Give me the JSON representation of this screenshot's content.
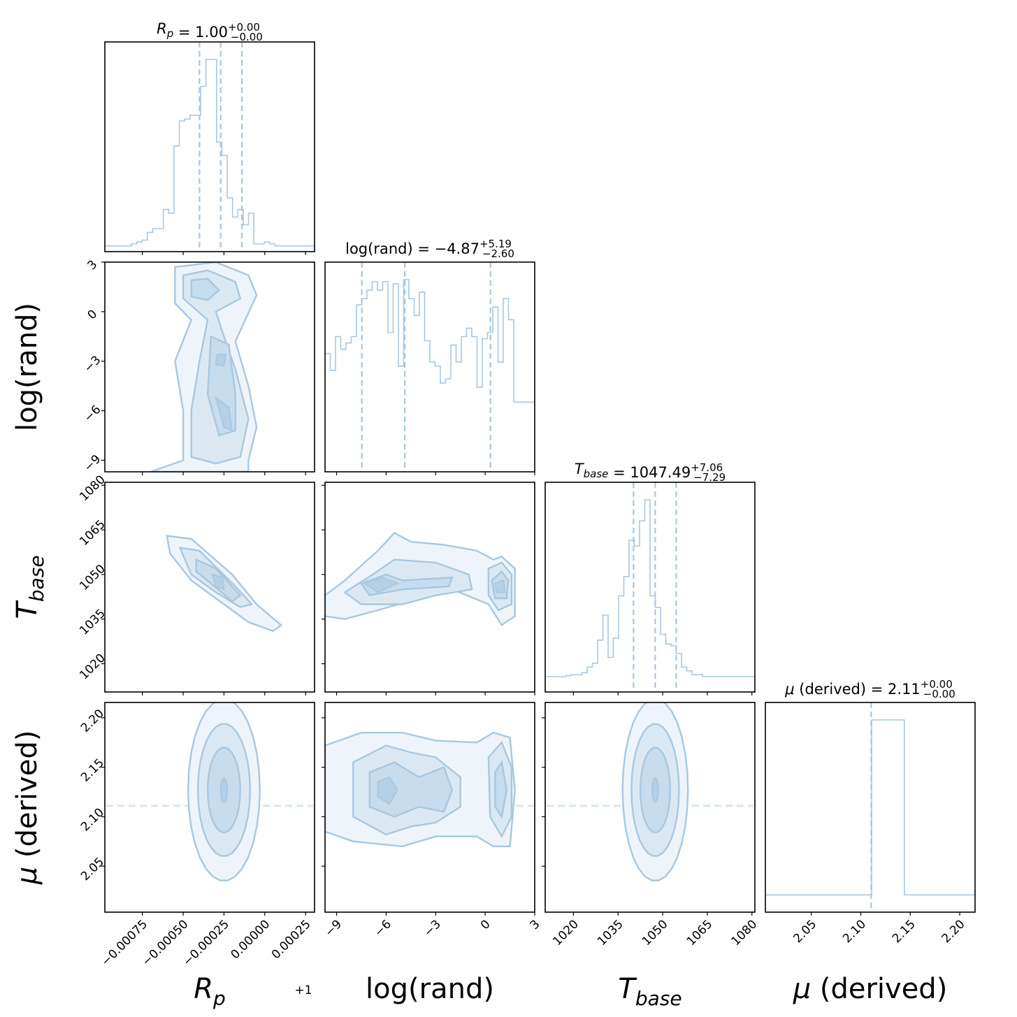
{
  "chart_data": {
    "type": "corner",
    "parameters": [
      {
        "key": "rp",
        "label": "R_p",
        "axis_title": "R",
        "axis_sub": "p",
        "offset_label": "+1",
        "range": [
          -0.00098,
          0.000305
        ],
        "ticks": [
          -0.00075,
          -0.0005,
          -0.00025,
          0.0,
          0.00025
        ],
        "tick_labels": [
          "−0.00075",
          "−0.00050",
          "−0.00025",
          "0.00000",
          "0.00025"
        ],
        "quantiles": [
          -0.0004,
          -0.00027,
          -0.00014
        ],
        "title": {
          "lead": "",
          "it": "R",
          "sub": "p",
          "mid": " = 1.00",
          "sup": "+0.00",
          "inf": "−0.00"
        }
      },
      {
        "key": "logrand",
        "label": "log(rand)",
        "axis_title": "log(rand)",
        "axis_sub": "",
        "range": [
          -9.7,
          3.0
        ],
        "ticks": [
          -9,
          -6,
          -3,
          0,
          3
        ],
        "tick_labels": [
          "−9",
          "−6",
          "−3",
          "0",
          "3"
        ],
        "quantiles": [
          -7.47,
          -4.87,
          0.32
        ],
        "title": {
          "lead": "log(rand) = −4.87",
          "it": "",
          "sub": "",
          "mid": "",
          "sup": "+5.19",
          "inf": "−2.60"
        }
      },
      {
        "key": "tbase",
        "label": "T_base",
        "axis_title": "T",
        "axis_sub": "base",
        "range": [
          1010.5,
          1081.0
        ],
        "ticks": [
          1020,
          1035,
          1050,
          1065,
          1080
        ],
        "tick_labels": [
          "1020",
          "1035",
          "1050",
          "1065",
          "1080"
        ],
        "quantiles": [
          1040.2,
          1047.49,
          1054.55
        ],
        "title": {
          "lead": "",
          "it": "T",
          "sub": "base",
          "mid": " = 1047.49",
          "sup": "+7.06",
          "inf": "−7.29"
        }
      },
      {
        "key": "mu",
        "label": "μ (derived)",
        "axis_title": "μ",
        "axis_sub": "",
        "axis_rest": " (derived)",
        "range": [
          2.0035,
          2.2155
        ],
        "ticks": [
          2.05,
          2.1,
          2.15,
          2.2
        ],
        "tick_labels": [
          "2.05",
          "2.10",
          "2.15",
          "2.20"
        ],
        "quantiles": [
          2.1097,
          2.1105,
          2.1112
        ],
        "title": {
          "lead": "",
          "it": "μ",
          "sub": "",
          "mid": " (derived) = 2.11",
          "sup": "+0.00",
          "inf": "−0.00"
        }
      }
    ],
    "histograms": {
      "rp": {
        "edges_start": -0.00098,
        "bin_width": 3.26e-05,
        "counts": [
          0.03,
          0.03,
          0.03,
          0.03,
          0.03,
          0.04,
          0.05,
          0.06,
          0.1,
          0.12,
          0.12,
          0.22,
          0.2,
          0.55,
          0.68,
          0.69,
          0.71,
          0.71,
          0.86,
          1.0,
          1.0,
          0.57,
          0.5,
          0.28,
          0.18,
          0.22,
          0.14,
          0.2,
          0.04,
          0.04,
          0.05,
          0.04,
          0.03,
          0.03,
          0.03,
          0.03,
          0.03,
          0.03,
          0.03,
          0.03
        ]
      },
      "logrand": {
        "edges_start": -9.7,
        "bin_width": 0.3175,
        "counts": [
          0.56,
          0.48,
          0.64,
          0.58,
          0.61,
          0.64,
          0.79,
          0.82,
          0.86,
          0.9,
          0.86,
          0.9,
          0.66,
          0.89,
          0.5,
          0.91,
          0.82,
          0.74,
          0.85,
          0.62,
          0.52,
          0.5,
          0.42,
          0.44,
          0.6,
          0.52,
          0.64,
          0.68,
          0.64,
          0.4,
          0.63,
          0.66,
          0.78,
          0.52,
          0.82,
          0.72,
          0.33,
          0.33,
          0.33,
          0.33
        ]
      },
      "tbase": {
        "edges_start": 1010.5,
        "bin_width": 1.7625,
        "counts": [
          0.08,
          0.08,
          0.08,
          0.08,
          0.085,
          0.09,
          0.09,
          0.1,
          0.13,
          0.15,
          0.27,
          0.4,
          0.18,
          0.28,
          0.5,
          0.6,
          0.79,
          0.76,
          0.89,
          1.0,
          0.5,
          0.44,
          0.3,
          0.25,
          0.24,
          0.2,
          0.13,
          0.11,
          0.09,
          0.09,
          0.08,
          0.08,
          0.08,
          0.08,
          0.08,
          0.08,
          0.08,
          0.08,
          0.08,
          0.08
        ]
      },
      "mu": {
        "bins": [
          [
            2.0035,
            2.111,
            0.09
          ],
          [
            2.111,
            2.144,
            1.0
          ],
          [
            2.144,
            2.2155,
            0.09
          ]
        ]
      }
    },
    "contours_2d": {
      "rp_vs_logrand": {
        "approx": "bimodal along log(rand)",
        "peaks_logrand": [
          1.0,
          -3.0,
          -6.0
        ],
        "rp_center": -0.00025
      },
      "rp_vs_tbase": {
        "approx": "negative correlation",
        "center": [
          -0.00025,
          1048
        ]
      },
      "logrand_vs_tbase": {
        "approx": "two clusters",
        "centers": [
          [
            -6.0,
            1047
          ],
          [
            1.0,
            1046
          ]
        ]
      },
      "rp_vs_mu": {
        "center": [
          -0.00025,
          2.127
        ]
      },
      "logrand_vs_mu": {
        "centers": [
          [
            -6.0,
            2.127
          ],
          [
            1.0,
            2.127
          ]
        ]
      },
      "tbase_vs_mu": {
        "center": [
          1047.5,
          2.127
        ]
      }
    }
  }
}
